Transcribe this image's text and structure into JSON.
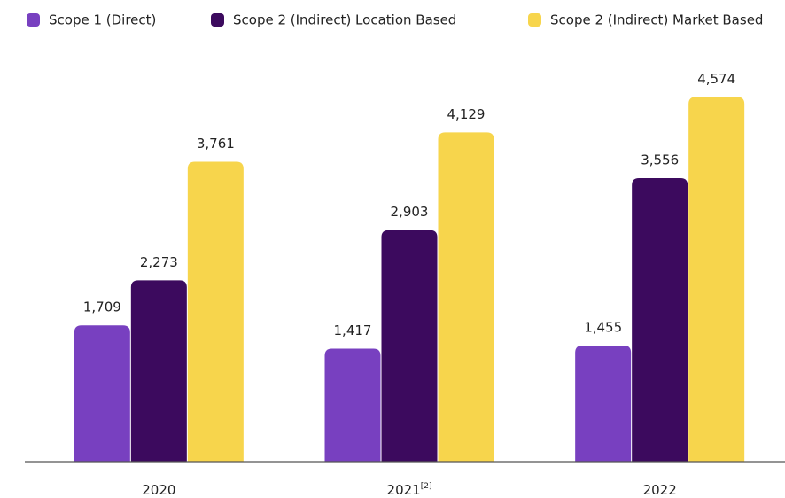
{
  "chart_data": {
    "type": "bar",
    "categories": [
      "2020",
      "2021",
      "2022"
    ],
    "category_superscripts": [
      null,
      "[2]",
      null
    ],
    "series": [
      {
        "name": "Scope 1 (Direct)",
        "color": "#7840c0",
        "values": [
          1709,
          1417,
          1455
        ],
        "value_labels": [
          "1,709",
          "1,417",
          "1,455"
        ]
      },
      {
        "name": "Scope 2 (Indirect) Location Based",
        "color": "#3c0a5e",
        "values": [
          2273,
          2903,
          3556
        ],
        "value_labels": [
          "2,273",
          "2,903",
          "3,556"
        ]
      },
      {
        "name": "Scope 2 (Indirect) Market Based",
        "color": "#f7d54c",
        "values": [
          3761,
          4129,
          4574
        ],
        "value_labels": [
          "3,761",
          "4,129",
          "4,574"
        ]
      }
    ],
    "ylim": [
      0,
      5000
    ],
    "legend": "top"
  }
}
